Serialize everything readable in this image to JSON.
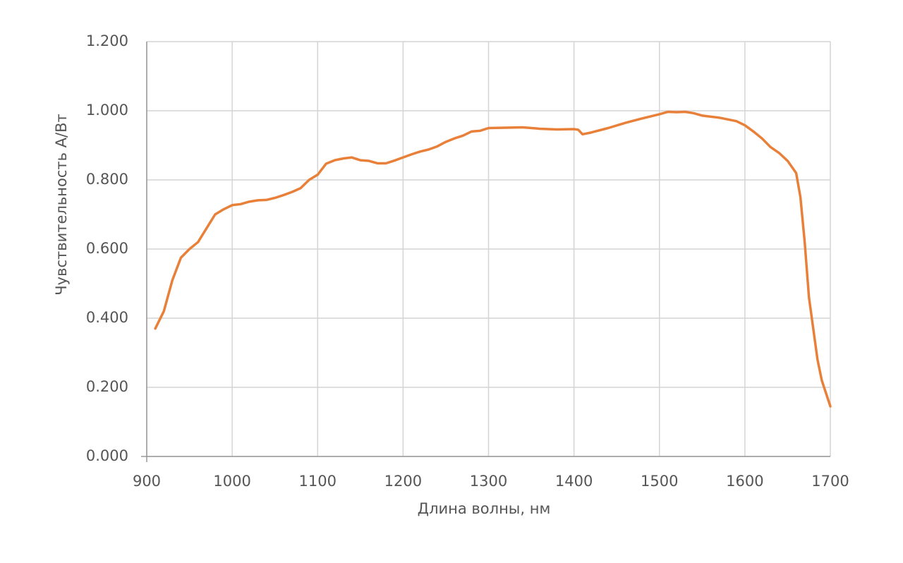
{
  "chart_data": {
    "type": "line",
    "xlabel": "Длина волны, нм",
    "ylabel": "Чувствительность  А/Вт",
    "x": [
      910,
      920,
      930,
      940,
      950,
      960,
      970,
      980,
      990,
      1000,
      1010,
      1020,
      1030,
      1040,
      1050,
      1060,
      1070,
      1080,
      1090,
      1100,
      1110,
      1120,
      1130,
      1140,
      1150,
      1160,
      1170,
      1180,
      1190,
      1200,
      1210,
      1220,
      1230,
      1240,
      1250,
      1260,
      1270,
      1280,
      1290,
      1300,
      1320,
      1340,
      1360,
      1380,
      1400,
      1405,
      1410,
      1420,
      1440,
      1460,
      1480,
      1500,
      1510,
      1520,
      1530,
      1540,
      1550,
      1570,
      1590,
      1600,
      1610,
      1620,
      1630,
      1640,
      1650,
      1660,
      1665,
      1670,
      1675,
      1680,
      1685,
      1690,
      1700
    ],
    "series": [
      {
        "color": "#e8803a",
        "values": [
          0.37,
          0.42,
          0.51,
          0.575,
          0.6,
          0.62,
          0.66,
          0.7,
          0.715,
          0.727,
          0.73,
          0.737,
          0.741,
          0.742,
          0.748,
          0.756,
          0.765,
          0.776,
          0.8,
          0.815,
          0.847,
          0.857,
          0.862,
          0.865,
          0.857,
          0.855,
          0.848,
          0.848,
          0.856,
          0.865,
          0.874,
          0.882,
          0.888,
          0.897,
          0.91,
          0.92,
          0.928,
          0.94,
          0.942,
          0.95,
          0.951,
          0.952,
          0.948,
          0.946,
          0.947,
          0.945,
          0.932,
          0.937,
          0.95,
          0.965,
          0.978,
          0.99,
          0.997,
          0.996,
          0.997,
          0.993,
          0.986,
          0.98,
          0.97,
          0.958,
          0.94,
          0.92,
          0.895,
          0.878,
          0.855,
          0.82,
          0.75,
          0.62,
          0.46,
          0.37,
          0.28,
          0.22,
          0.145
        ]
      }
    ],
    "xlim": [
      900,
      1700
    ],
    "xticks": [
      900,
      1000,
      1100,
      1200,
      1300,
      1400,
      1500,
      1600,
      1700
    ],
    "ylim": [
      0,
      1.2
    ],
    "yticks": [
      {
        "value": 0,
        "label": "0.000"
      },
      {
        "value": 0.2,
        "label": "0.200"
      },
      {
        "value": 0.4,
        "label": "0.400"
      },
      {
        "value": 0.6,
        "label": "0.600"
      },
      {
        "value": 0.8,
        "label": "0.800"
      },
      {
        "value": 1,
        "label": "1.000"
      },
      {
        "value": 1.2,
        "label": "1.200"
      }
    ],
    "grid": true
  }
}
